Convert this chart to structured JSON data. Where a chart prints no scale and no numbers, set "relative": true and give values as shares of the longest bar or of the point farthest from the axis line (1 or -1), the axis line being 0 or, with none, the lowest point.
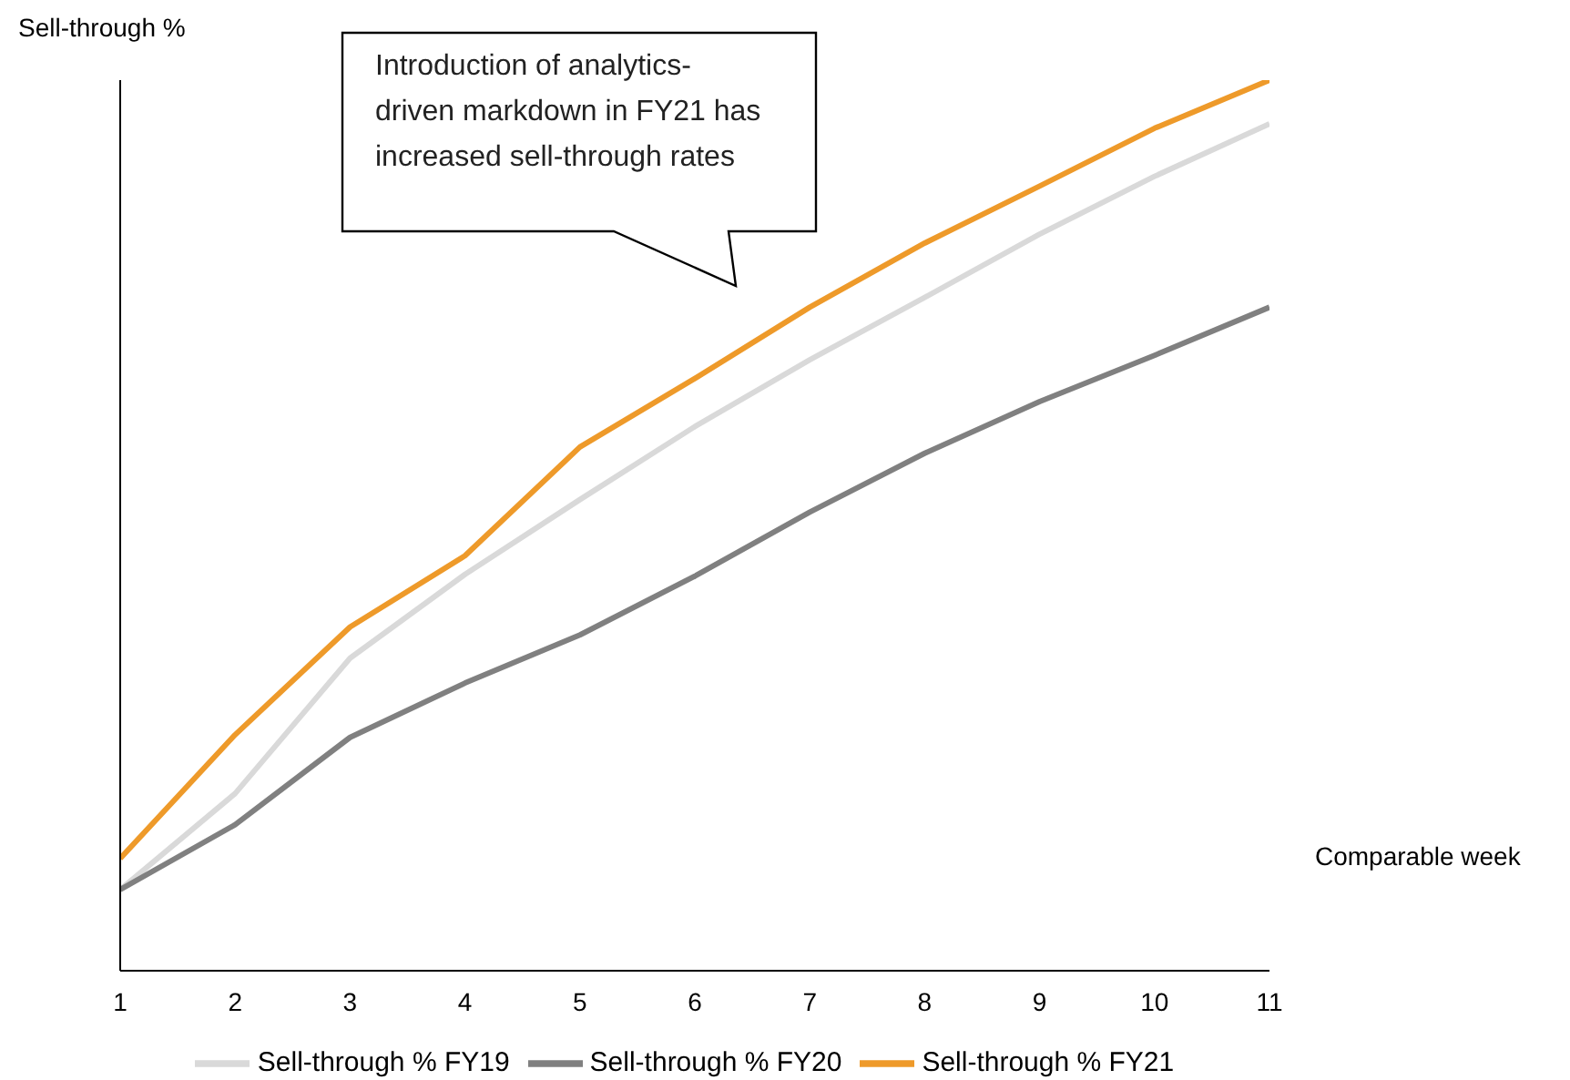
{
  "chart_data": {
    "type": "line",
    "relative": true,
    "xlabel": "Comparable week",
    "ylabel": "Sell-through %",
    "x": [
      1,
      2,
      3,
      4,
      5,
      6,
      7,
      8,
      9,
      10,
      11
    ],
    "xlim": [
      1,
      11
    ],
    "xticks": [
      1,
      2,
      3,
      4,
      5,
      6,
      7,
      8,
      9,
      10,
      11
    ],
    "series": [
      {
        "name": "Sell-through % FY19",
        "color": "#d9d9d9",
        "values": [
          0.091,
          0.199,
          0.351,
          0.445,
          0.529,
          0.611,
          0.686,
          0.756,
          0.827,
          0.892,
          0.951
        ]
      },
      {
        "name": "Sell-through % FY20",
        "color": "#808080",
        "values": [
          0.091,
          0.164,
          0.262,
          0.323,
          0.377,
          0.443,
          0.515,
          0.581,
          0.639,
          0.691,
          0.745
        ]
      },
      {
        "name": "Sell-through % FY21",
        "color": "#ee9a2a",
        "values": [
          0.126,
          0.265,
          0.386,
          0.466,
          0.588,
          0.665,
          0.745,
          0.817,
          0.881,
          0.946,
          1
        ]
      }
    ],
    "annotations": [
      "Introduction of analytics-driven markdown in FY21 has increased sell-through rates"
    ],
    "legend": "bottom",
    "grid": false,
    "marker": "none",
    "line_style": "solid"
  }
}
